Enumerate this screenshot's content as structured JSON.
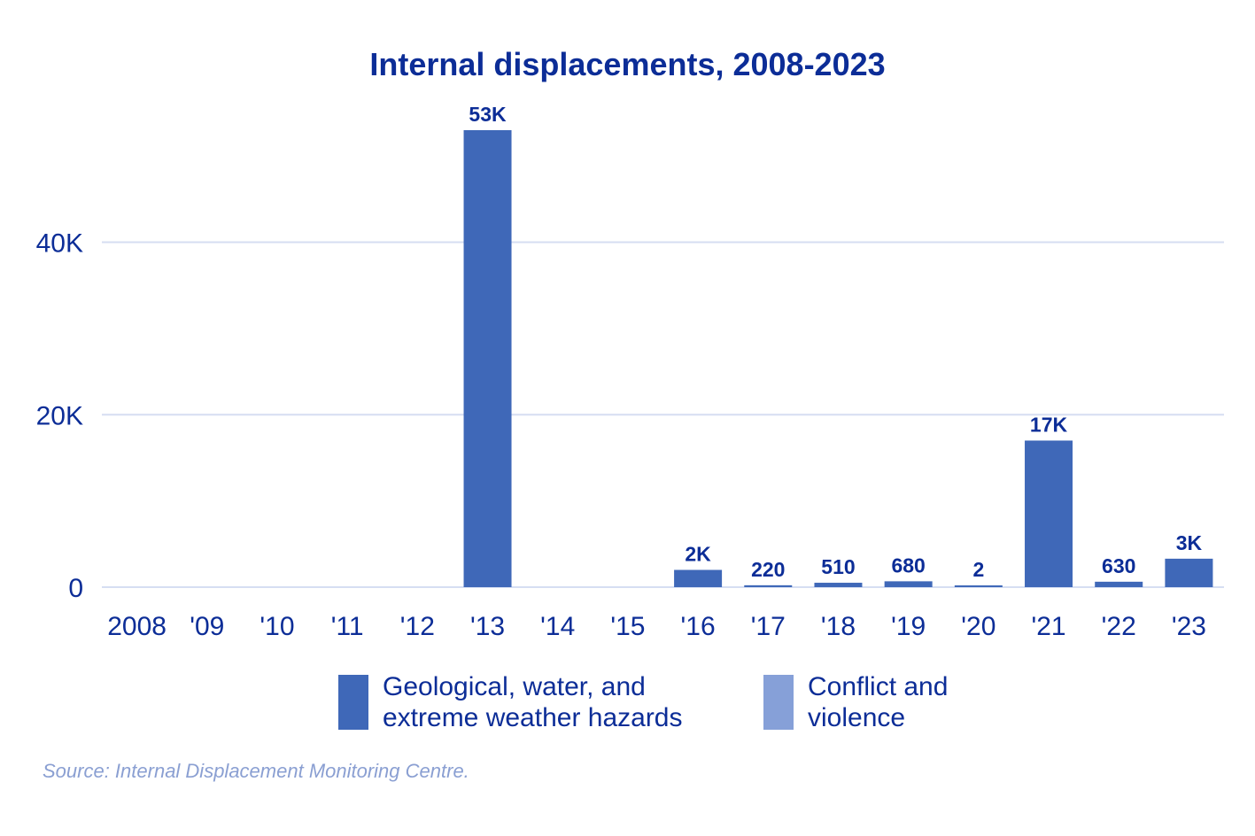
{
  "chart_data": {
    "type": "bar",
    "title": "Internal displacements, 2008-2023",
    "categories": [
      "2008",
      "'09",
      "'10",
      "'11",
      "'12",
      "'13",
      "'14",
      "'15",
      "'16",
      "'17",
      "'18",
      "'19",
      "'20",
      "'21",
      "'22",
      "'23"
    ],
    "series": [
      {
        "name": "Geological, water, and extreme weather hazards",
        "color": "#3f68b8",
        "values": [
          0,
          0,
          0,
          0,
          0,
          53000,
          0,
          0,
          2000,
          220,
          510,
          680,
          2,
          17000,
          630,
          3300
        ],
        "labels": [
          "",
          "",
          "",
          "",
          "",
          "53K",
          "",
          "",
          "2K",
          "220",
          "510",
          "680",
          "2",
          "17K",
          "630",
          "3K"
        ]
      },
      {
        "name": "Conflict and violence",
        "color": "#86a0d8",
        "values": [
          0,
          0,
          0,
          0,
          0,
          0,
          0,
          0,
          0,
          0,
          0,
          0,
          0,
          0,
          0,
          0
        ],
        "labels": []
      }
    ],
    "yticks": [
      0,
      20000,
      40000
    ],
    "ytick_labels": [
      "0",
      "20K",
      "40K"
    ],
    "ylim": [
      0,
      57000
    ],
    "grid": true,
    "legend_position": "bottom"
  },
  "source": "Source: Internal Displacement Monitoring Centre."
}
